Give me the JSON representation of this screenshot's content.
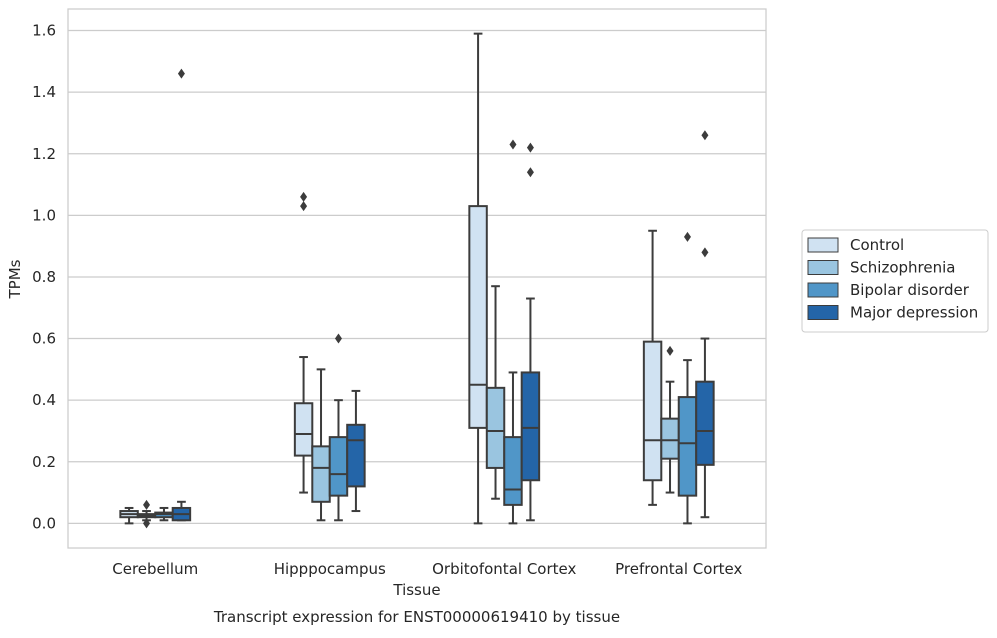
{
  "chart_data": {
    "type": "box",
    "title": "",
    "caption": "Transcript expression for ENST00000619410 by tissue",
    "xlabel": "Tissue",
    "ylabel": "TPMs",
    "ylim": [
      -0.08,
      1.67
    ],
    "yticks": [
      0.0,
      0.2,
      0.4,
      0.6,
      0.8,
      1.0,
      1.2,
      1.4,
      1.6
    ],
    "ytick_labels": [
      "0.0",
      "0.2",
      "0.4",
      "0.6",
      "0.8",
      "1.0",
      "1.2",
      "1.4",
      "1.6"
    ],
    "grid": "horizontal",
    "legend_position": "right (outside plot)",
    "categories": [
      "Cerebellum",
      "Hipppocampus",
      "Orbitofontal Cortex",
      "Prefrontal Cortex"
    ],
    "series": [
      {
        "name": "Control",
        "color": "#d0e2f2",
        "boxes": [
          {
            "whisker_low": 0.0,
            "q1": 0.02,
            "median": 0.03,
            "q3": 0.04,
            "whisker_high": 0.05,
            "outliers": []
          },
          {
            "whisker_low": 0.1,
            "q1": 0.22,
            "median": 0.29,
            "q3": 0.39,
            "whisker_high": 0.54,
            "outliers": [
              1.03,
              1.06
            ]
          },
          {
            "whisker_low": 0.0,
            "q1": 0.31,
            "median": 0.45,
            "q3": 1.03,
            "whisker_high": 1.59,
            "outliers": []
          },
          {
            "whisker_low": 0.06,
            "q1": 0.14,
            "median": 0.27,
            "q3": 0.59,
            "whisker_high": 0.95,
            "outliers": []
          }
        ]
      },
      {
        "name": "Schizophrenia",
        "color": "#9ac5e0",
        "boxes": [
          {
            "whisker_low": 0.01,
            "q1": 0.02,
            "median": 0.025,
            "q3": 0.03,
            "whisker_high": 0.04,
            "outliers": [
              0.06,
              0.0
            ]
          },
          {
            "whisker_low": 0.01,
            "q1": 0.07,
            "median": 0.18,
            "q3": 0.25,
            "whisker_high": 0.5,
            "outliers": []
          },
          {
            "whisker_low": 0.08,
            "q1": 0.18,
            "median": 0.3,
            "q3": 0.44,
            "whisker_high": 0.77,
            "outliers": []
          },
          {
            "whisker_low": 0.1,
            "q1": 0.21,
            "median": 0.27,
            "q3": 0.34,
            "whisker_high": 0.46,
            "outliers": [
              0.56
            ]
          }
        ]
      },
      {
        "name": "Bipolar disorder",
        "color": "#5096c8",
        "boxes": [
          {
            "whisker_low": 0.01,
            "q1": 0.02,
            "median": 0.03,
            "q3": 0.035,
            "whisker_high": 0.05,
            "outliers": []
          },
          {
            "whisker_low": 0.01,
            "q1": 0.09,
            "median": 0.16,
            "q3": 0.28,
            "whisker_high": 0.4,
            "outliers": [
              0.6
            ]
          },
          {
            "whisker_low": 0.0,
            "q1": 0.06,
            "median": 0.11,
            "q3": 0.28,
            "whisker_high": 0.49,
            "outliers": [
              1.23
            ]
          },
          {
            "whisker_low": 0.0,
            "q1": 0.09,
            "median": 0.26,
            "q3": 0.41,
            "whisker_high": 0.53,
            "outliers": [
              0.93
            ]
          }
        ]
      },
      {
        "name": "Major depression",
        "color": "#2465a8",
        "boxes": [
          {
            "whisker_low": 0.01,
            "q1": 0.01,
            "median": 0.03,
            "q3": 0.05,
            "whisker_high": 0.07,
            "outliers": [
              1.46
            ]
          },
          {
            "whisker_low": 0.04,
            "q1": 0.12,
            "median": 0.27,
            "q3": 0.32,
            "whisker_high": 0.43,
            "outliers": []
          },
          {
            "whisker_low": 0.01,
            "q1": 0.14,
            "median": 0.31,
            "q3": 0.49,
            "whisker_high": 0.73,
            "outliers": [
              1.14,
              1.22
            ]
          },
          {
            "whisker_low": 0.02,
            "q1": 0.19,
            "median": 0.3,
            "q3": 0.46,
            "whisker_high": 0.6,
            "outliers": [
              0.88,
              1.26
            ]
          }
        ]
      }
    ]
  }
}
